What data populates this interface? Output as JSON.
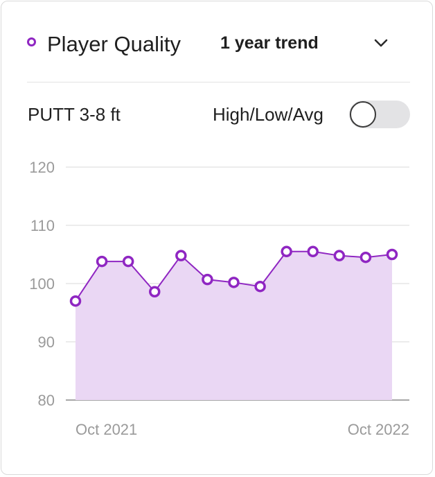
{
  "header": {
    "metric_title": "Player Quality",
    "trend_selection": "1 year trend",
    "trend_icon": "chevron-down-icon",
    "legend_icon": "circle-marker-icon"
  },
  "stat": {
    "label": "PUTT 3-8 ft"
  },
  "toggle": {
    "label": "High/Low/Avg",
    "checked": false
  },
  "colors": {
    "accent": "#8f26c2",
    "fill": "#ead7f4",
    "grid": "#e6e6e6",
    "axis_text": "#9a9a9a"
  },
  "chart_data": {
    "type": "area",
    "title": "",
    "xlabel": "",
    "ylabel": "",
    "ylim": [
      80,
      120
    ],
    "yticks": [
      120,
      110,
      100,
      90,
      80
    ],
    "x_tick_labels": [
      "Oct 2021",
      "Oct 2022"
    ],
    "grid": true,
    "series": [
      {
        "values": [
          97.0,
          103.8,
          103.8,
          98.6,
          104.8,
          100.7,
          100.2,
          99.5,
          105.5,
          105.5,
          104.8,
          104.5,
          105.0
        ]
      }
    ]
  }
}
